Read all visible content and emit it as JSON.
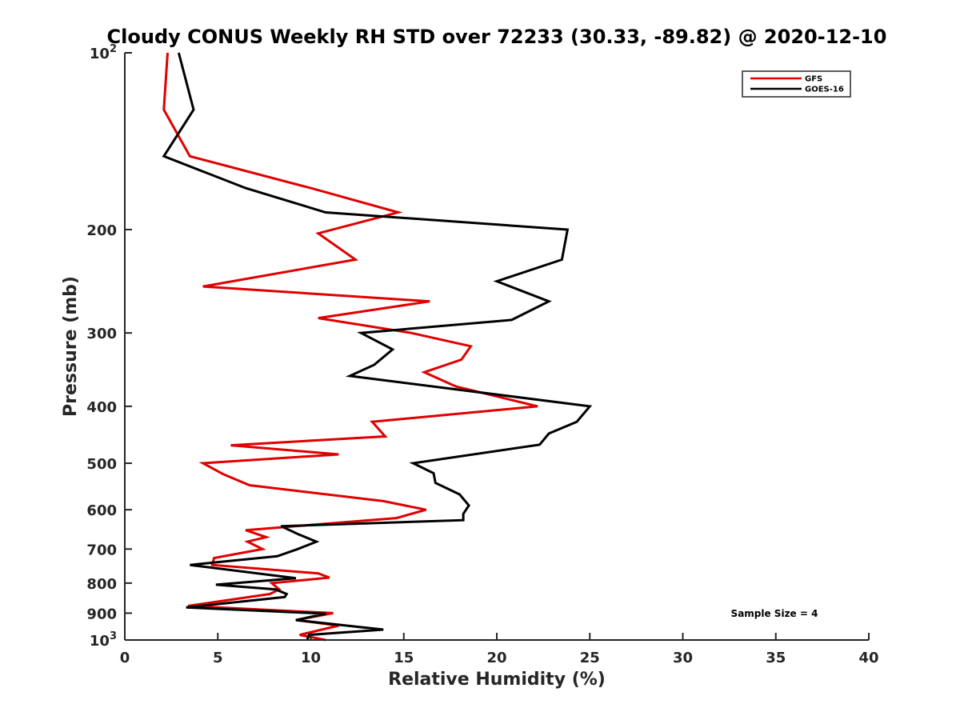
{
  "chart_data": {
    "type": "line",
    "title": "Cloudy CONUS Weekly RH STD over 72233 (30.33, -89.82) @ 2020-12-10",
    "xlabel": "Relative Humidity (%)",
    "ylabel": "Pressure (mb)",
    "xlim": [
      0,
      40
    ],
    "ylim": [
      100,
      1000
    ],
    "y_scale": "log",
    "y_reversed": true,
    "x_ticks": [
      "0",
      "5",
      "10",
      "15",
      "20",
      "25",
      "30",
      "35",
      "40"
    ],
    "y_ticks": [
      {
        "value": 100,
        "label": "10",
        "sup": "2"
      },
      {
        "value": 200,
        "label": "200"
      },
      {
        "value": 300,
        "label": "300"
      },
      {
        "value": 400,
        "label": "400"
      },
      {
        "value": 500,
        "label": "500"
      },
      {
        "value": 600,
        "label": "600"
      },
      {
        "value": 700,
        "label": "700"
      },
      {
        "value": 800,
        "label": "800"
      },
      {
        "value": 900,
        "label": "900"
      },
      {
        "value": 1000,
        "label": "10",
        "sup": "3"
      }
    ],
    "legend_position": "top-right",
    "annotation": "Sample Size = 4",
    "series": [
      {
        "name": "GFS",
        "color": "#e00000",
        "points": [
          [
            2.3,
            100
          ],
          [
            2.1,
            125
          ],
          [
            3.5,
            150
          ],
          [
            10.0,
            170
          ],
          [
            14.7,
            187
          ],
          [
            10.4,
            203
          ],
          [
            12.4,
            225
          ],
          [
            4.2,
            250
          ],
          [
            16.4,
            265
          ],
          [
            10.4,
            283
          ],
          [
            15.4,
            300
          ],
          [
            18.6,
            316
          ],
          [
            18.1,
            333
          ],
          [
            16.1,
            350
          ],
          [
            17.8,
            370
          ],
          [
            22.2,
            400
          ],
          [
            13.3,
            425
          ],
          [
            14.0,
            450
          ],
          [
            5.7,
            466
          ],
          [
            11.5,
            483
          ],
          [
            4.2,
            500
          ],
          [
            5.3,
            522
          ],
          [
            6.7,
            545
          ],
          [
            13.9,
            580
          ],
          [
            16.2,
            600
          ],
          [
            14.6,
            620
          ],
          [
            6.5,
            650
          ],
          [
            7.6,
            668
          ],
          [
            6.6,
            680
          ],
          [
            7.4,
            700
          ],
          [
            4.8,
            725
          ],
          [
            4.7,
            745
          ],
          [
            10.4,
            770
          ],
          [
            11.0,
            783
          ],
          [
            7.9,
            800
          ],
          [
            8.3,
            820
          ],
          [
            7.8,
            835
          ],
          [
            3.4,
            875
          ],
          [
            11.2,
            900
          ],
          [
            9.2,
            925
          ],
          [
            11.5,
            945
          ],
          [
            9.4,
            980
          ],
          [
            10.8,
            1000
          ]
        ]
      },
      {
        "name": "GOES-16",
        "color": "#000000",
        "points": [
          [
            2.9,
            100
          ],
          [
            3.7,
            125
          ],
          [
            2.1,
            150
          ],
          [
            6.5,
            170
          ],
          [
            10.8,
            187
          ],
          [
            23.8,
            200
          ],
          [
            23.5,
            225
          ],
          [
            20.0,
            245
          ],
          [
            22.8,
            265
          ],
          [
            20.8,
            285
          ],
          [
            12.7,
            300
          ],
          [
            14.4,
            320
          ],
          [
            13.4,
            340
          ],
          [
            12.1,
            355
          ],
          [
            25.0,
            400
          ],
          [
            24.3,
            425
          ],
          [
            22.8,
            445
          ],
          [
            22.3,
            465
          ],
          [
            15.5,
            500
          ],
          [
            16.6,
            520
          ],
          [
            16.7,
            540
          ],
          [
            18.0,
            565
          ],
          [
            18.5,
            590
          ],
          [
            18.2,
            610
          ],
          [
            18.2,
            625
          ],
          [
            8.4,
            640
          ],
          [
            9.3,
            660
          ],
          [
            10.3,
            680
          ],
          [
            9.3,
            700
          ],
          [
            8.2,
            720
          ],
          [
            3.5,
            745
          ],
          [
            9.2,
            785
          ],
          [
            4.9,
            805
          ],
          [
            8.1,
            820
          ],
          [
            8.7,
            835
          ],
          [
            8.6,
            845
          ],
          [
            3.3,
            880
          ],
          [
            10.8,
            902
          ],
          [
            9.2,
            925
          ],
          [
            13.9,
            960
          ],
          [
            9.9,
            980
          ],
          [
            9.8,
            1000
          ]
        ]
      }
    ]
  }
}
